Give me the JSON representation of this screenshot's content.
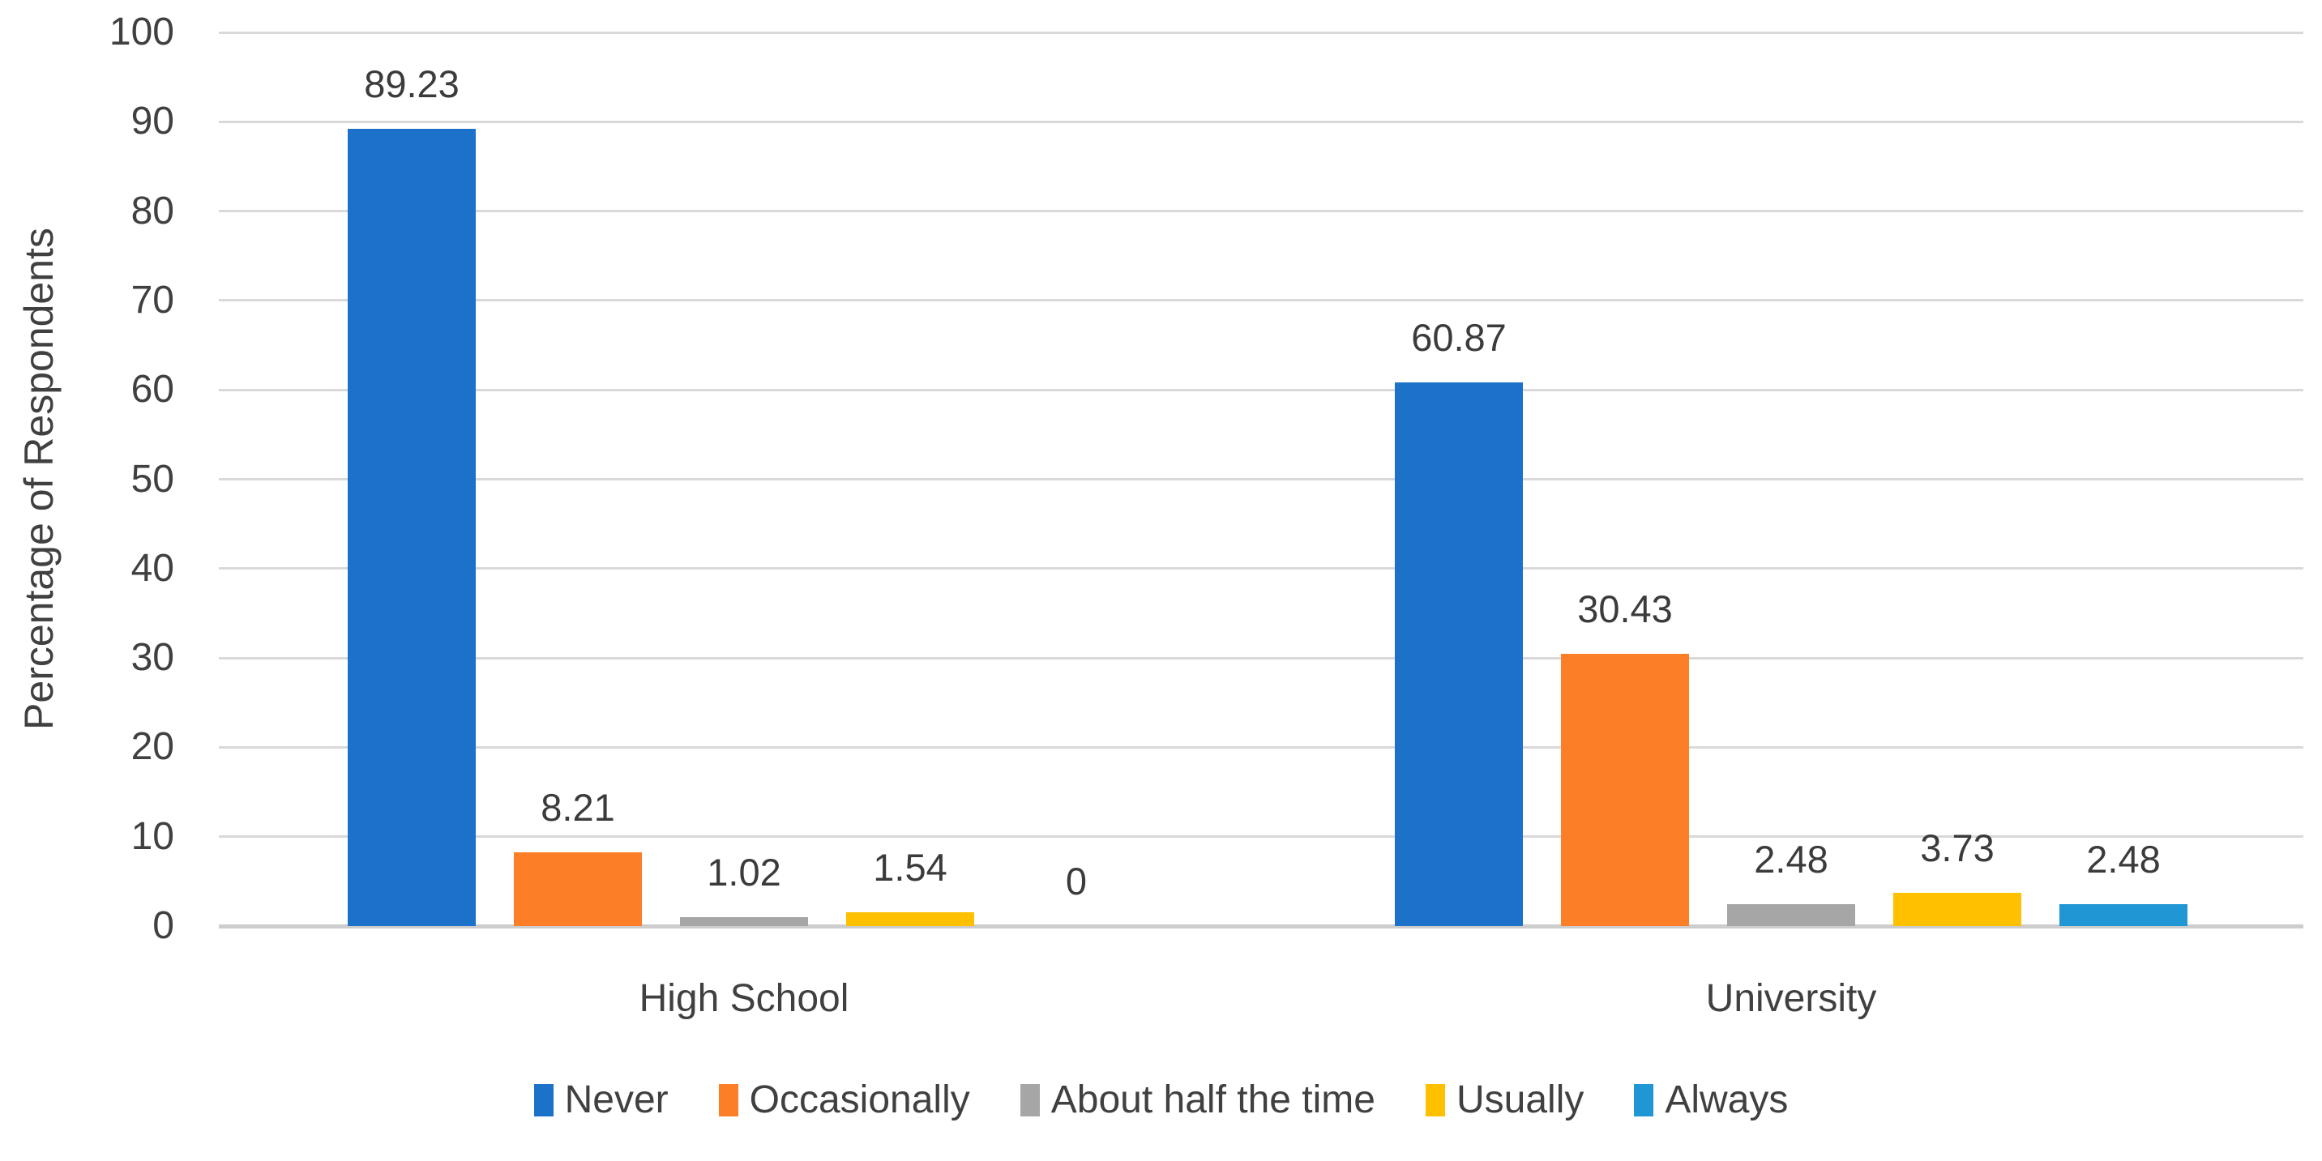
{
  "chart_data": {
    "type": "bar",
    "title": "",
    "xlabel": "",
    "ylabel": "Percentage of Respondents",
    "categories": [
      "High School",
      "University"
    ],
    "series": [
      {
        "name": "Never",
        "color": "#1B72C8",
        "values": [
          89.23,
          60.87
        ],
        "labels": [
          "89.23",
          "60.87"
        ]
      },
      {
        "name": "Occasionally",
        "color": "#FC7E26",
        "values": [
          8.21,
          30.43
        ],
        "labels": [
          "8.21",
          "30.43"
        ]
      },
      {
        "name": "About half the time",
        "color": "#A6A6A6",
        "values": [
          1.02,
          2.48
        ],
        "labels": [
          "1.02",
          "2.48"
        ]
      },
      {
        "name": "Usually",
        "color": "#FFC000",
        "values": [
          1.54,
          3.73
        ],
        "labels": [
          "1.54",
          "3.73"
        ]
      },
      {
        "name": "Always",
        "color": "#2196D5",
        "values": [
          0,
          2.48
        ],
        "labels": [
          "0",
          "2.48"
        ]
      }
    ],
    "ylim": [
      0,
      100
    ],
    "yticks": [
      0,
      10,
      20,
      30,
      40,
      50,
      60,
      70,
      80,
      90,
      100
    ],
    "grid": true,
    "gridline_color": "#D9D9D9",
    "baseline_color": "#CDCDCD",
    "axis_text_color": "#404040",
    "data_label_color": "#3B3B3B",
    "legend_position": "bottom"
  }
}
